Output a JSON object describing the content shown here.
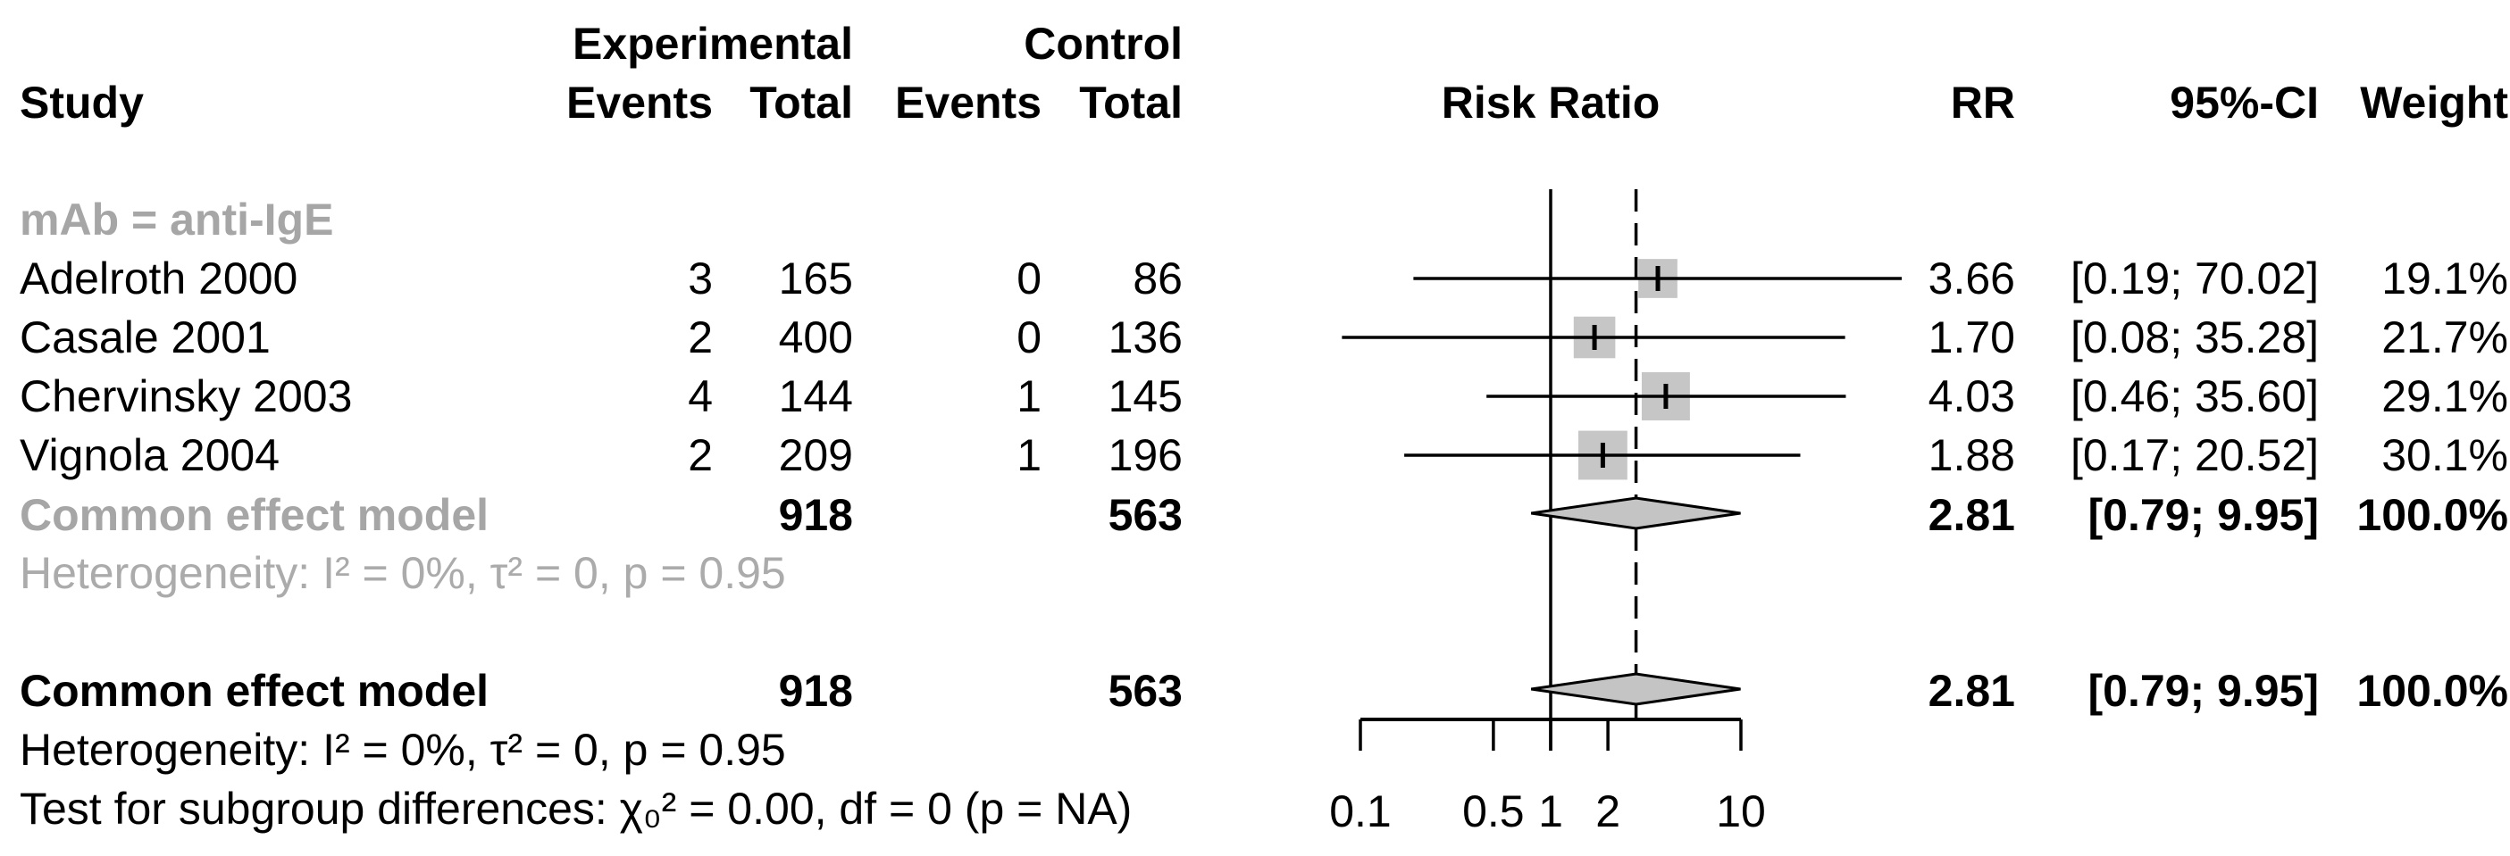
{
  "colors": {
    "text": "#000000",
    "subgroup_gray": "#a6a6a6",
    "heterogeneity_gray": "#ababab",
    "square_fill": "#c6c6c6",
    "diamond_fill": "#c4c4c4",
    "line": "#000000"
  },
  "header": {
    "study": "Study",
    "experimental_group": "Experimental",
    "control_group": "Control",
    "exp_events": "Events",
    "exp_total": "Total",
    "ctrl_events": "Events",
    "ctrl_total": "Total",
    "risk_ratio": "Risk Ratio",
    "rr": "RR",
    "ci": "95%-CI",
    "weight": "Weight"
  },
  "subgroup_label": "mAb = anti-IgE",
  "rows": [
    {
      "study": "Adelroth 2000",
      "exp_events": "3",
      "exp_total": "165",
      "ctrl_events": "0",
      "ctrl_total": "86",
      "rr_text": "3.66",
      "ci_text": "[0.19; 70.02]",
      "weight_text": "19.1%"
    },
    {
      "study": "Casale 2001",
      "exp_events": "2",
      "exp_total": "400",
      "ctrl_events": "0",
      "ctrl_total": "136",
      "rr_text": "1.70",
      "ci_text": "[0.08; 35.28]",
      "weight_text": "21.7%"
    },
    {
      "study": "Chervinsky 2003",
      "exp_events": "4",
      "exp_total": "144",
      "ctrl_events": "1",
      "ctrl_total": "145",
      "rr_text": "4.03",
      "ci_text": "[0.46; 35.60]",
      "weight_text": "29.1%"
    },
    {
      "study": "Vignola 2004",
      "exp_events": "2",
      "exp_total": "209",
      "ctrl_events": "1",
      "ctrl_total": "196",
      "rr_text": "1.88",
      "ci_text": "[0.17; 20.52]",
      "weight_text": "30.1%"
    }
  ],
  "subgroup_summary": {
    "label": "Common effect model",
    "exp_total": "918",
    "ctrl_total": "563",
    "rr_text": "2.81",
    "ci_text": "[0.79; 9.95]",
    "weight_text": "100.0%"
  },
  "subgroup_heterogeneity": "Heterogeneity: I² = 0%, τ² = 0, p = 0.95",
  "overall_summary": {
    "label": "Common effect model",
    "exp_total": "918",
    "ctrl_total": "563",
    "rr_text": "2.81",
    "ci_text": "[0.79; 9.95]",
    "weight_text": "100.0%"
  },
  "overall_heterogeneity": "Heterogeneity: I² = 0%, τ² = 0, p = 0.95",
  "subgroup_test": "Test for subgroup differences: χ₀² = 0.00, df = 0 (p = NA)",
  "chart_data": {
    "type": "scatter",
    "variant": "forest-plot",
    "title": "",
    "xlabel": "Risk Ratio",
    "x_scale": "log10",
    "x_axis_range": [
      0.1,
      10
    ],
    "x_ticks": [
      0.1,
      0.5,
      1,
      2,
      10
    ],
    "reference_line": 1,
    "pooled_dashed_line": 2.81,
    "studies": [
      {
        "name": "Adelroth 2000",
        "rr": 3.66,
        "ci_low": 0.19,
        "ci_high": 70.02,
        "weight_pct": 19.1
      },
      {
        "name": "Casale 2001",
        "rr": 1.7,
        "ci_low": 0.08,
        "ci_high": 35.28,
        "weight_pct": 21.7
      },
      {
        "name": "Chervinsky 2003",
        "rr": 4.03,
        "ci_low": 0.46,
        "ci_high": 35.6,
        "weight_pct": 29.1
      },
      {
        "name": "Vignola 2004",
        "rr": 1.88,
        "ci_low": 0.17,
        "ci_high": 20.52,
        "weight_pct": 30.1
      }
    ],
    "summaries": [
      {
        "name": "Common effect model (subgroup mAb = anti-IgE)",
        "rr": 2.81,
        "ci_low": 0.79,
        "ci_high": 9.95,
        "weight_pct": 100.0
      },
      {
        "name": "Common effect model (overall)",
        "rr": 2.81,
        "ci_low": 0.79,
        "ci_high": 9.95,
        "weight_pct": 100.0
      }
    ]
  }
}
